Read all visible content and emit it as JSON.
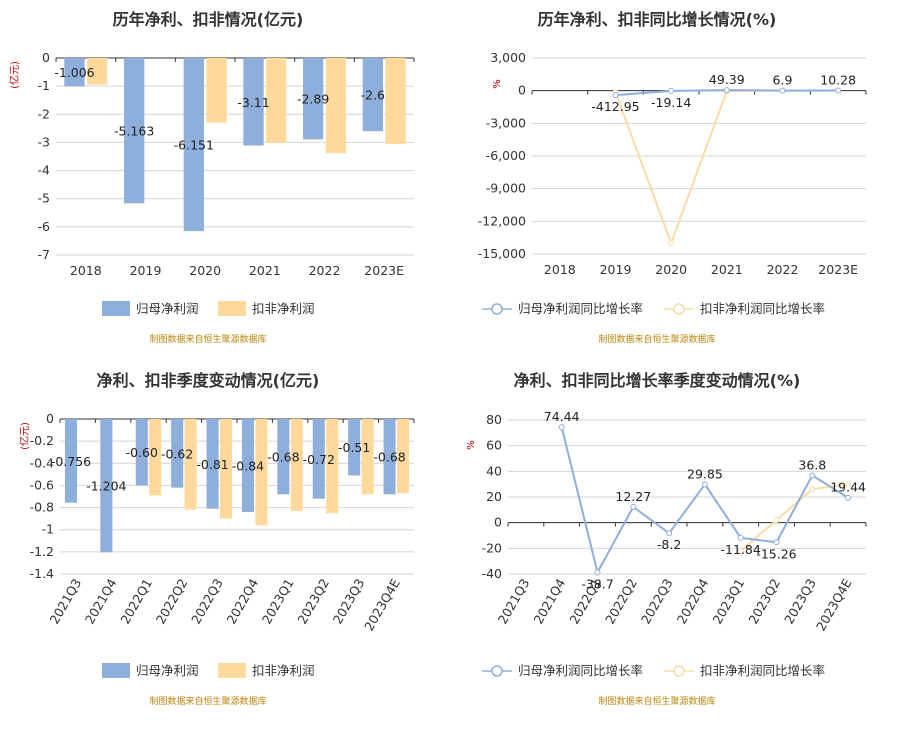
{
  "colors": {
    "blue": "#8eaedb",
    "orange": "#fed99b",
    "line_blue": "#8eaedb",
    "line_orange": "#fbdba6",
    "grid": "#d4d4d4",
    "axis": "#333333"
  },
  "source_note": "制图数据来自恒生聚源数据库",
  "chart_data": [
    {
      "type": "bar",
      "title": "历年净利、扣非情况(亿元)",
      "unit": "(亿元)",
      "categories": [
        "2018",
        "2019",
        "2020",
        "2021",
        "2022",
        "2023E"
      ],
      "ylim": [
        -7,
        0
      ],
      "yticks": [
        0,
        -1,
        -2,
        -3,
        -4,
        -5,
        -6,
        -7
      ],
      "ytick_labels": [
        "0",
        "-1",
        "-2",
        "-3",
        "-4",
        "-5",
        "-6",
        "-7"
      ],
      "series": [
        {
          "name": "归母净利润",
          "values": [
            -1.006,
            -5.163,
            -6.151,
            -3.11,
            -2.89,
            -2.6
          ],
          "labels": [
            "-1.006",
            "-5.163",
            "-6.151",
            "-3.11",
            "-2.89",
            "-2.6"
          ]
        },
        {
          "name": "扣非净利润",
          "values": [
            -0.95,
            null,
            -2.3,
            -3.02,
            -3.38,
            -3.05
          ],
          "labels": null
        }
      ],
      "legend": "bottom"
    },
    {
      "type": "line",
      "title": "历年净利、扣非同比增长情况(%)",
      "unit": "%",
      "categories": [
        "2018",
        "2019",
        "2020",
        "2021",
        "2022",
        "2023E"
      ],
      "ylim": [
        -15000,
        3000
      ],
      "yticks": [
        3000,
        0,
        -3000,
        -6000,
        -9000,
        -12000,
        -15000
      ],
      "ytick_labels": [
        "3,000",
        "0",
        "-3,000",
        "-6,000",
        "-9,000",
        "-12,000",
        "-15,000"
      ],
      "series": [
        {
          "name": "归母净利润同比增长率",
          "values": [
            null,
            -412.95,
            -19.14,
            49.39,
            6.9,
            10.28
          ],
          "labels": [
            null,
            "-412.95",
            "-19.14",
            "49.39",
            "6.9",
            "10.28"
          ]
        },
        {
          "name": "扣非净利润同比增长率",
          "values": [
            null,
            -150,
            -14000,
            -30,
            0,
            10
          ],
          "labels": null
        }
      ],
      "legend": "bottom"
    },
    {
      "type": "bar",
      "title": "净利、扣非季度变动情况(亿元)",
      "unit": "(亿元)",
      "categories": [
        "2021Q3",
        "2021Q4",
        "2022Q1",
        "2022Q2",
        "2022Q3",
        "2022Q4",
        "2023Q1",
        "2023Q2",
        "2023Q3",
        "2023Q4E"
      ],
      "ylim": [
        -1.4,
        0
      ],
      "yticks": [
        0,
        -0.2,
        -0.4,
        -0.6,
        -0.8,
        -1,
        -1.2,
        -1.4
      ],
      "ytick_labels": [
        "0",
        "-0.2",
        "-0.4",
        "-0.6",
        "-0.8",
        "-1",
        "-1.2",
        "-1.4"
      ],
      "series": [
        {
          "name": "归母净利润",
          "values": [
            -0.756,
            -1.204,
            -0.6,
            -0.62,
            -0.81,
            -0.84,
            -0.68,
            -0.72,
            -0.51,
            -0.68
          ],
          "labels": [
            "-0.756",
            "-1.204",
            "-0.60",
            "-0.62",
            "-0.81",
            "-0.84",
            "-0.68",
            "-0.72",
            "-0.51",
            "-0.68"
          ]
        },
        {
          "name": "扣非净利润",
          "values": [
            null,
            null,
            -0.69,
            -0.82,
            -0.9,
            -0.96,
            -0.83,
            -0.85,
            -0.68,
            -0.67
          ],
          "labels": null
        }
      ],
      "legend": "bottom"
    },
    {
      "type": "line",
      "title": "净利、扣非同比增长率季度变动情况(%)",
      "unit": "%",
      "categories": [
        "2021Q3",
        "2021Q4",
        "2022Q1",
        "2022Q2",
        "2022Q3",
        "2022Q4",
        "2023Q1",
        "2023Q2",
        "2023Q3",
        "2023Q4E"
      ],
      "ylim": [
        -40,
        80
      ],
      "yticks": [
        80,
        60,
        40,
        20,
        0,
        -20,
        -40
      ],
      "ytick_labels": [
        "80",
        "60",
        "40",
        "20",
        "0",
        "-20",
        "-40"
      ],
      "series": [
        {
          "name": "归母净利润同比增长率",
          "values": [
            null,
            74.44,
            -38.7,
            12.27,
            -8.2,
            29.85,
            -11.84,
            -15.26,
            36.8,
            19.44
          ],
          "labels": [
            null,
            "74.44",
            "-38.7",
            "12.27",
            "-8.2",
            "29.85",
            "-11.84",
            "-15.26",
            "36.8",
            "19.44"
          ]
        },
        {
          "name": "扣非净利润同比增长率",
          "values": [
            null,
            null,
            null,
            null,
            null,
            null,
            -22,
            2,
            26,
            30
          ],
          "labels": null
        }
      ],
      "legend": "bottom"
    }
  ]
}
